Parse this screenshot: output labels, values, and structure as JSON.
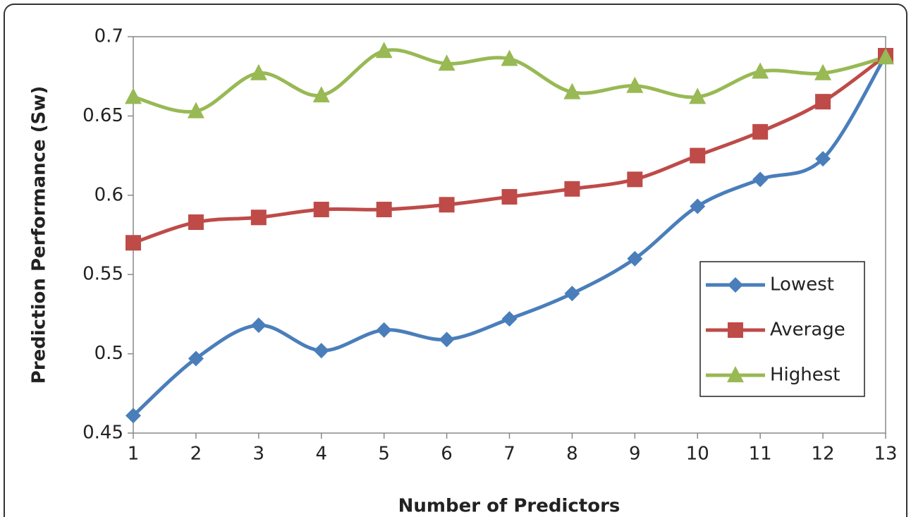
{
  "chart_data": {
    "type": "line",
    "x_label": "Number of Predictors",
    "y_label": "Prediction Performance (Sw)",
    "x": [
      1,
      2,
      3,
      4,
      5,
      6,
      7,
      8,
      9,
      10,
      11,
      12,
      13
    ],
    "xlim": [
      1,
      13
    ],
    "xticks": [
      1,
      2,
      3,
      4,
      5,
      6,
      7,
      8,
      9,
      10,
      11,
      12,
      13
    ],
    "ylim": [
      0.45,
      0.7
    ],
    "yticks": [
      0.45,
      0.5,
      0.55,
      0.6,
      0.65,
      0.7
    ],
    "smooth": true,
    "legend": "center right",
    "series": [
      {
        "name": "Lowest",
        "color": "#4a7ebb",
        "marker": "diamond",
        "values": [
          0.461,
          0.497,
          0.518,
          0.502,
          0.515,
          0.509,
          0.522,
          0.538,
          0.56,
          0.593,
          0.61,
          0.623,
          0.688
        ]
      },
      {
        "name": "Average",
        "color": "#be4b48",
        "marker": "square",
        "values": [
          0.57,
          0.583,
          0.586,
          0.591,
          0.591,
          0.594,
          0.599,
          0.604,
          0.61,
          0.625,
          0.64,
          0.659,
          0.688
        ]
      },
      {
        "name": "Highest",
        "color": "#98b954",
        "marker": "triangle",
        "values": [
          0.662,
          0.653,
          0.677,
          0.663,
          0.691,
          0.683,
          0.686,
          0.665,
          0.669,
          0.662,
          0.678,
          0.677,
          0.687
        ]
      }
    ]
  }
}
